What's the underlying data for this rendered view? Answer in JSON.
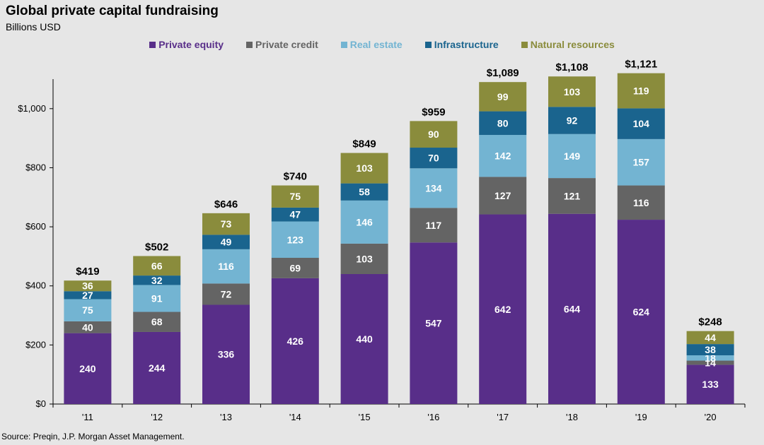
{
  "title": "Global private capital fundraising",
  "subtitle": "Billions USD",
  "source": "Source: Preqin, J.P. Morgan Asset Management.",
  "chart_data": {
    "type": "bar",
    "stacked": true,
    "title": "Global private capital fundraising",
    "ylabel": "Billions USD",
    "xlabel": "",
    "ylim": [
      0,
      1100
    ],
    "yticks": [
      0,
      200,
      400,
      600,
      800,
      1000
    ],
    "ytick_labels": [
      "$0",
      "$200",
      "$400",
      "$600",
      "$800",
      "$1,000"
    ],
    "categories": [
      "'11",
      "'12",
      "'13",
      "'14",
      "'15",
      "'16",
      "'17",
      "'18",
      "'19",
      "'20"
    ],
    "series": [
      {
        "name": "Private equity",
        "color": "#582e89",
        "values": [
          240,
          244,
          336,
          426,
          440,
          547,
          642,
          644,
          624,
          133
        ]
      },
      {
        "name": "Private credit",
        "color": "#646464",
        "values": [
          40,
          68,
          72,
          69,
          103,
          117,
          127,
          121,
          116,
          14
        ]
      },
      {
        "name": "Real estate",
        "color": "#73b4d2",
        "values": [
          75,
          91,
          116,
          123,
          146,
          134,
          142,
          149,
          157,
          18
        ]
      },
      {
        "name": "Infrastructure",
        "color": "#1a648e",
        "values": [
          27,
          32,
          49,
          47,
          58,
          70,
          80,
          92,
          104,
          38
        ]
      },
      {
        "name": "Natural resources",
        "color": "#8a8c3c",
        "values": [
          36,
          66,
          73,
          75,
          103,
          90,
          99,
          103,
          119,
          44
        ]
      }
    ],
    "totals": [
      "$419",
      "$502",
      "$646",
      "$740",
      "$849",
      "$959",
      "$1,089",
      "$1,108",
      "$1,121",
      "$248"
    ],
    "legend_position": "top-center",
    "grid": false
  }
}
